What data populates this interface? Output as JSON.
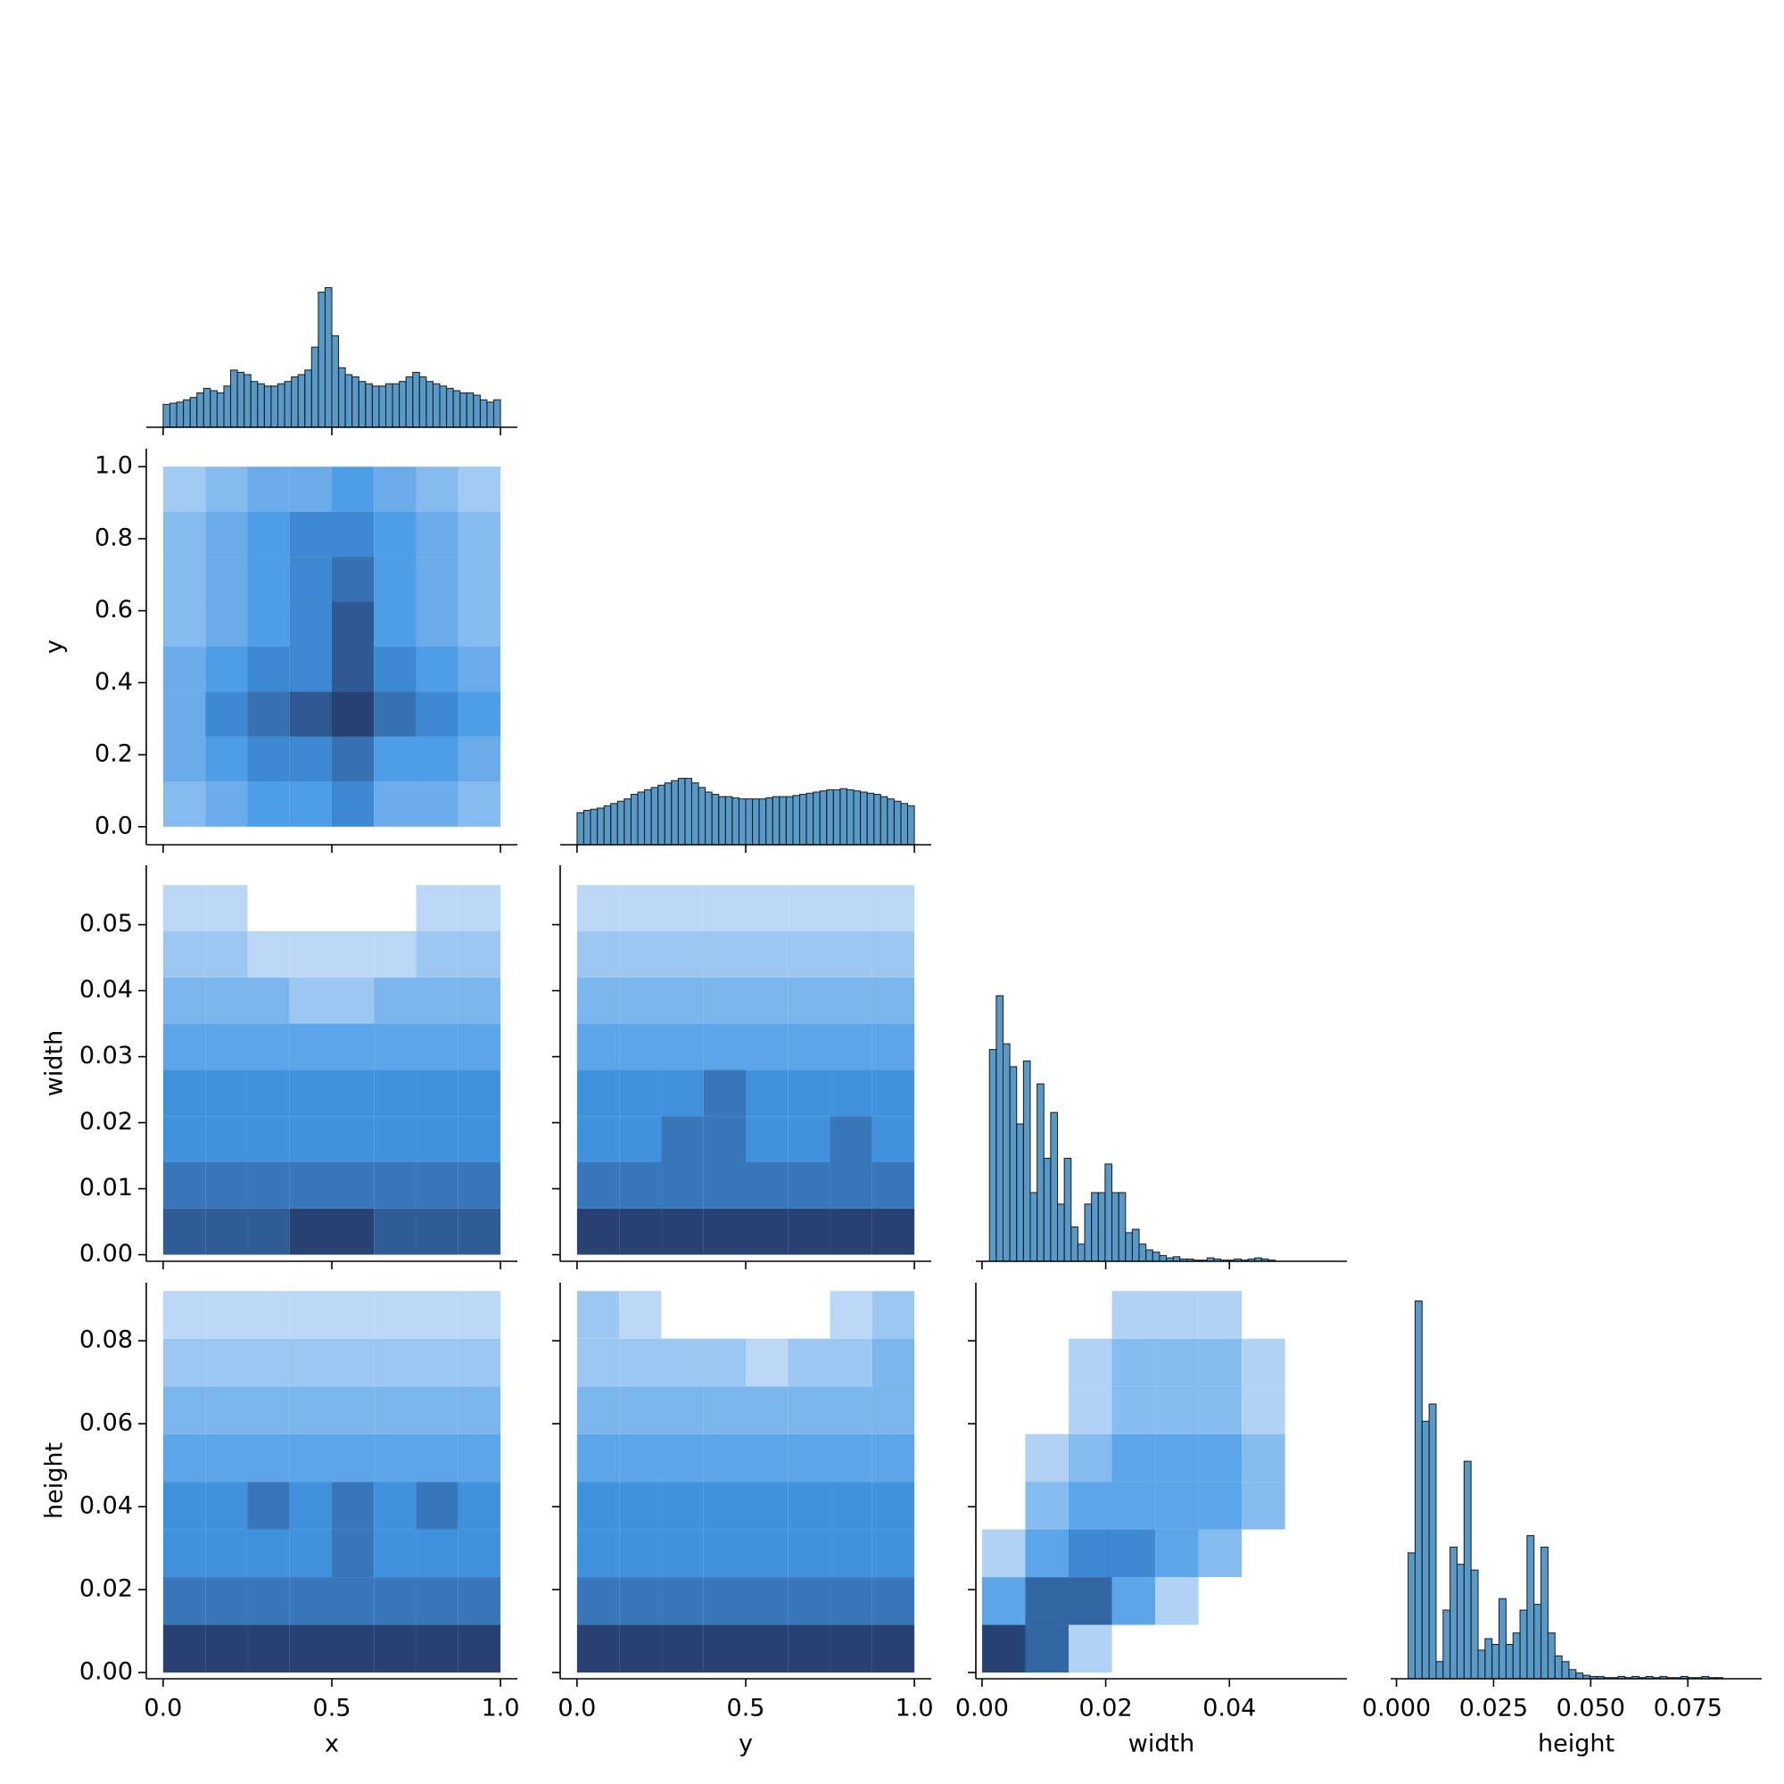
{
  "chart_data": {
    "type": "pairplot",
    "color": "#1f77b4",
    "variables": [
      {
        "label": "x",
        "lim": [
          -0.05,
          1.05
        ],
        "xticks": [
          {
            "value": 0,
            "label": "0.0"
          },
          0.5,
          {
            "value": 1,
            "label": "1.0"
          }
        ]
      },
      {
        "label": "y",
        "lim": [
          -0.05,
          1.05
        ],
        "xticks": [
          {
            "value": 0,
            "label": "0.0"
          },
          0.5,
          {
            "value": 1,
            "label": "1.0"
          }
        ],
        "yticks": [
          {
            "value": 0,
            "label": "0.0"
          },
          0.2,
          0.4,
          0.6,
          0.8,
          {
            "value": 1,
            "label": "1.0"
          }
        ]
      },
      {
        "label": "width",
        "lim": [
          -0.001,
          0.059
        ],
        "xticks": [
          {
            "value": 0,
            "label": "0.00"
          },
          0.02,
          0.04
        ],
        "yticks": [
          {
            "value": 0,
            "label": "0.00"
          },
          0.01,
          0.02,
          0.03,
          0.04,
          0.05
        ]
      },
      {
        "label": "height",
        "lim": [
          -0.0015,
          0.094
        ],
        "xticks": [
          {
            "value": 0,
            "label": "0.000"
          },
          0.025,
          {
            "value": 0.05,
            "label": "0.050"
          },
          0.075
        ],
        "yticks": [
          {
            "value": 0,
            "label": "0.00"
          },
          0.02,
          0.04,
          0.06,
          0.08
        ]
      }
    ],
    "histograms": [
      {
        "bins": [
          0,
          0.02,
          0.04,
          0.06,
          0.08,
          0.1,
          0.12,
          0.14,
          0.16,
          0.18,
          0.2,
          0.22,
          0.24,
          0.26,
          0.28,
          0.3,
          0.32,
          0.34,
          0.36,
          0.38,
          0.4,
          0.42,
          0.44,
          0.46,
          0.48,
          0.5,
          0.52,
          0.54,
          0.56,
          0.58,
          0.6,
          0.62,
          0.64,
          0.66,
          0.68,
          0.7,
          0.72,
          0.74,
          0.76,
          0.78,
          0.8,
          0.82,
          0.84,
          0.86,
          0.88,
          0.9,
          0.92,
          0.94,
          0.96,
          0.98,
          1
        ],
        "values": [
          20,
          21,
          22,
          24,
          26,
          30,
          34,
          32,
          30,
          36,
          50,
          48,
          46,
          40,
          38,
          36,
          36,
          38,
          40,
          44,
          46,
          50,
          70,
          118,
          122,
          80,
          52,
          46,
          44,
          40,
          38,
          36,
          36,
          38,
          38,
          40,
          44,
          48,
          44,
          40,
          38,
          36,
          34,
          32,
          30,
          30,
          28,
          24,
          22,
          24
        ]
      },
      {
        "bins": [
          0,
          0.02,
          0.04,
          0.06,
          0.08,
          0.1,
          0.12,
          0.14,
          0.16,
          0.18,
          0.2,
          0.22,
          0.24,
          0.26,
          0.28,
          0.3,
          0.32,
          0.34,
          0.36,
          0.38,
          0.4,
          0.42,
          0.44,
          0.46,
          0.48,
          0.5,
          0.52,
          0.54,
          0.56,
          0.58,
          0.6,
          0.62,
          0.64,
          0.66,
          0.68,
          0.7,
          0.72,
          0.74,
          0.76,
          0.78,
          0.8,
          0.82,
          0.84,
          0.86,
          0.88,
          0.9,
          0.92,
          0.94,
          0.96,
          0.98,
          1
        ],
        "values": [
          28,
          30,
          31,
          32,
          34,
          36,
          38,
          40,
          44,
          46,
          48,
          50,
          52,
          54,
          56,
          58,
          58,
          54,
          50,
          46,
          44,
          42,
          42,
          41,
          40,
          40,
          40,
          40,
          41,
          42,
          42,
          42,
          43,
          44,
          45,
          46,
          47,
          48,
          48,
          49,
          48,
          47,
          46,
          45,
          44,
          42,
          40,
          38,
          36,
          34
        ]
      },
      {
        "bins": [
          0.0012,
          0.0023,
          0.0034,
          0.0045,
          0.0056,
          0.0067,
          0.0078,
          0.0089,
          0.01,
          0.0111,
          0.0122,
          0.0133,
          0.0144,
          0.0155,
          0.0166,
          0.0177,
          0.0188,
          0.0199,
          0.021,
          0.0221,
          0.0232,
          0.0243,
          0.0254,
          0.0265,
          0.0276,
          0.0287,
          0.0298,
          0.0309,
          0.032,
          0.0331,
          0.0342,
          0.0353,
          0.0364,
          0.0375,
          0.0386,
          0.0397,
          0.0408,
          0.0419,
          0.043,
          0.0441,
          0.0452,
          0.0463,
          0.0474,
          0.0485,
          0.0496,
          0.0507,
          0.0518,
          0.0529,
          0.054,
          0.0551,
          0.0562
        ],
        "values": [
          185,
          232,
          190,
          170,
          120,
          175,
          60,
          155,
          90,
          130,
          50,
          90,
          30,
          15,
          50,
          60,
          60,
          85,
          60,
          60,
          25,
          28,
          15,
          10,
          8,
          5,
          3,
          4,
          2,
          2,
          1,
          1,
          3,
          2,
          1,
          1,
          2,
          1,
          2,
          3,
          2,
          1,
          0,
          0,
          0,
          0,
          0,
          0,
          0,
          0
        ]
      },
      {
        "bins": [
          0.003,
          0.0048,
          0.0066,
          0.0084,
          0.0102,
          0.012,
          0.0138,
          0.0156,
          0.0174,
          0.0192,
          0.021,
          0.0228,
          0.0246,
          0.0264,
          0.0282,
          0.03,
          0.0318,
          0.0336,
          0.0354,
          0.0372,
          0.039,
          0.0408,
          0.0426,
          0.0444,
          0.0462,
          0.048,
          0.0498,
          0.0516,
          0.0534,
          0.0552,
          0.057,
          0.0588,
          0.0606,
          0.0624,
          0.0642,
          0.066,
          0.0678,
          0.0696,
          0.0714,
          0.0732,
          0.075,
          0.0768,
          0.0786,
          0.0804,
          0.0822,
          0.084,
          0.0858,
          0.0876,
          0.0894,
          0.0912,
          0.093
        ],
        "values": [
          110,
          330,
          225,
          240,
          15,
          60,
          115,
          100,
          190,
          95,
          25,
          35,
          30,
          70,
          30,
          40,
          60,
          125,
          65,
          115,
          40,
          20,
          15,
          8,
          5,
          3,
          2,
          2,
          1,
          1,
          2,
          1,
          2,
          1,
          2,
          1,
          2,
          1,
          1,
          2,
          1,
          1,
          2,
          1,
          1,
          0,
          0,
          0,
          0,
          0
        ]
      }
    ],
    "hist2d": [
      {
        "xbins": [
          0,
          0.125,
          0.25,
          0.375,
          0.5,
          0.625,
          0.75,
          0.875,
          1
        ],
        "ybins": [
          0,
          0.125,
          0.25,
          0.375,
          0.5,
          0.625,
          0.75,
          0.875,
          1
        ],
        "counts": [
          [
            3,
            4,
            5,
            5,
            6,
            4,
            4,
            3
          ],
          [
            4,
            5,
            6,
            6,
            7,
            5,
            5,
            4
          ],
          [
            4,
            6,
            7,
            8,
            9,
            7,
            6,
            5
          ],
          [
            4,
            5,
            6,
            6,
            8,
            6,
            5,
            4
          ],
          [
            3,
            4,
            5,
            6,
            8,
            5,
            4,
            3
          ],
          [
            3,
            4,
            5,
            6,
            7,
            5,
            4,
            3
          ],
          [
            3,
            4,
            5,
            6,
            6,
            5,
            4,
            3
          ],
          [
            2,
            3,
            4,
            4,
            5,
            4,
            3,
            2
          ]
        ]
      },
      {
        "xbins": [
          0,
          0.125,
          0.25,
          0.375,
          0.5,
          0.625,
          0.75,
          0.875,
          1
        ],
        "ybins": [
          0,
          0.007,
          0.014,
          0.021,
          0.028,
          0.035,
          0.042,
          0.049,
          0.056
        ],
        "counts": [
          [
            7,
            7,
            7,
            8,
            8,
            7,
            7,
            7
          ],
          [
            6,
            6,
            6,
            6,
            6,
            6,
            6,
            6
          ],
          [
            5,
            5,
            5,
            5,
            5,
            5,
            5,
            5
          ],
          [
            5,
            5,
            5,
            5,
            5,
            5,
            5,
            5
          ],
          [
            4,
            4,
            4,
            4,
            4,
            4,
            4,
            4
          ],
          [
            3,
            3,
            3,
            2,
            2,
            3,
            3,
            3
          ],
          [
            2,
            2,
            1,
            1,
            1,
            1,
            2,
            2
          ],
          [
            1,
            1,
            0,
            0,
            0,
            0,
            1,
            1
          ]
        ]
      },
      {
        "xbins": [
          0,
          0.125,
          0.25,
          0.375,
          0.5,
          0.625,
          0.75,
          0.875,
          1
        ],
        "ybins": [
          0,
          0.007,
          0.014,
          0.021,
          0.028,
          0.035,
          0.042,
          0.049,
          0.056
        ],
        "counts": [
          [
            8,
            8,
            8,
            8,
            8,
            8,
            8,
            8
          ],
          [
            6,
            6,
            6,
            6,
            6,
            6,
            6,
            6
          ],
          [
            5,
            5,
            6,
            6,
            5,
            5,
            6,
            5
          ],
          [
            5,
            5,
            5,
            6,
            5,
            5,
            5,
            5
          ],
          [
            4,
            4,
            4,
            4,
            4,
            4,
            4,
            4
          ],
          [
            3,
            3,
            3,
            3,
            3,
            3,
            3,
            3
          ],
          [
            2,
            2,
            2,
            2,
            2,
            2,
            2,
            2
          ],
          [
            1,
            1,
            1,
            1,
            1,
            1,
            1,
            1
          ]
        ]
      },
      {
        "xbins": [
          0,
          0.125,
          0.25,
          0.375,
          0.5,
          0.625,
          0.75,
          0.875,
          1
        ],
        "ybins": [
          0,
          0.0115,
          0.023,
          0.0345,
          0.046,
          0.0575,
          0.069,
          0.0805,
          0.092
        ],
        "counts": [
          [
            8,
            8,
            8,
            8,
            8,
            8,
            8,
            8
          ],
          [
            6,
            6,
            6,
            6,
            6,
            6,
            6,
            6
          ],
          [
            5,
            5,
            5,
            5,
            6,
            5,
            5,
            5
          ],
          [
            5,
            5,
            6,
            5,
            6,
            5,
            6,
            5
          ],
          [
            4,
            4,
            4,
            4,
            4,
            4,
            4,
            4
          ],
          [
            3,
            3,
            3,
            3,
            3,
            3,
            3,
            3
          ],
          [
            2,
            2,
            2,
            2,
            2,
            2,
            2,
            2
          ],
          [
            1,
            1,
            1,
            1,
            1,
            1,
            1,
            1
          ]
        ]
      },
      {
        "xbins": [
          0,
          0.125,
          0.25,
          0.375,
          0.5,
          0.625,
          0.75,
          0.875,
          1
        ],
        "ybins": [
          0,
          0.0115,
          0.023,
          0.0345,
          0.046,
          0.0575,
          0.069,
          0.0805,
          0.092
        ],
        "counts": [
          [
            8,
            8,
            8,
            8,
            8,
            8,
            8,
            8
          ],
          [
            6,
            6,
            6,
            6,
            6,
            6,
            6,
            6
          ],
          [
            5,
            5,
            5,
            5,
            5,
            5,
            5,
            5
          ],
          [
            5,
            5,
            5,
            5,
            5,
            5,
            5,
            5
          ],
          [
            4,
            4,
            4,
            4,
            4,
            4,
            4,
            4
          ],
          [
            3,
            3,
            3,
            3,
            3,
            3,
            3,
            3
          ],
          [
            2,
            2,
            2,
            2,
            1,
            2,
            2,
            3
          ],
          [
            2,
            1,
            0,
            0,
            0,
            0,
            1,
            2
          ]
        ]
      },
      {
        "xbins": [
          0,
          0.007,
          0.014,
          0.021,
          0.028,
          0.035,
          0.042,
          0.049,
          0.056
        ],
        "ybins": [
          0,
          0.0115,
          0.023,
          0.0345,
          0.046,
          0.0575,
          0.069,
          0.0805,
          0.092
        ],
        "counts": [
          [
            6,
            5,
            1,
            0,
            0,
            0,
            0,
            0
          ],
          [
            3,
            5,
            5,
            3,
            1,
            0,
            0,
            0
          ],
          [
            1,
            3,
            4,
            4,
            3,
            2,
            0,
            0
          ],
          [
            0,
            2,
            3,
            3,
            3,
            3,
            2,
            0
          ],
          [
            0,
            1,
            2,
            3,
            3,
            3,
            2,
            0
          ],
          [
            0,
            0,
            1,
            2,
            2,
            2,
            1,
            0
          ],
          [
            0,
            0,
            1,
            2,
            2,
            2,
            1,
            0
          ],
          [
            0,
            0,
            0,
            1,
            1,
            1,
            0,
            0
          ]
        ]
      }
    ]
  }
}
